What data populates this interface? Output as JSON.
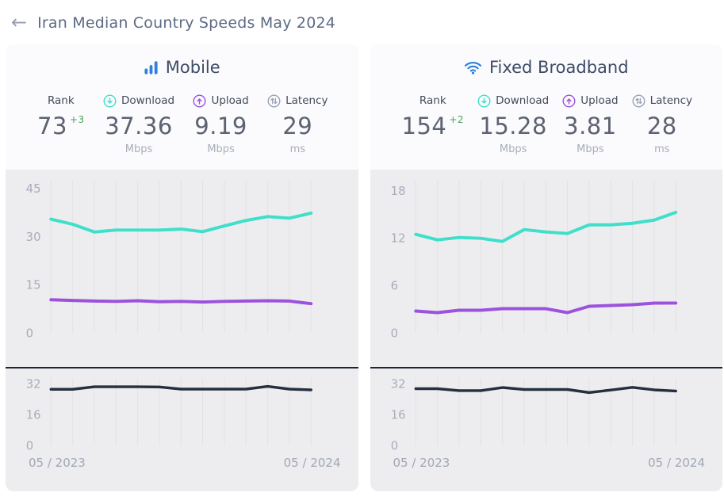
{
  "page": {
    "back_arrow": "←",
    "title": "Iran Median Country Speeds May 2024"
  },
  "colors": {
    "download": "#3fdfc9",
    "upload": "#9c52dc",
    "latency_line": "#252f3e",
    "grid": "#e2e2e6",
    "tick_label": "#a7adba",
    "accent_blue": "#2f80d9",
    "latency_icon_gray": "#9aa2b3",
    "positive_change": "#4da355"
  },
  "panels": [
    {
      "title": "Mobile",
      "icon": "mobile-signal-bars",
      "stats": {
        "rank": {
          "label": "Rank",
          "value": "73",
          "change": "+3"
        },
        "download": {
          "label": "Download",
          "value": "37.36",
          "unit": "Mbps"
        },
        "upload": {
          "label": "Upload",
          "value": "9.19",
          "unit": "Mbps"
        },
        "latency": {
          "label": "Latency",
          "value": "29",
          "unit": "ms"
        }
      },
      "x_axis": {
        "start": "05 / 2023",
        "end": "05 / 2024"
      }
    },
    {
      "title": "Fixed Broadband",
      "icon": "wifi",
      "stats": {
        "rank": {
          "label": "Rank",
          "value": "154",
          "change": "+2"
        },
        "download": {
          "label": "Download",
          "value": "15.28",
          "unit": "Mbps"
        },
        "upload": {
          "label": "Upload",
          "value": "3.81",
          "unit": "Mbps"
        },
        "latency": {
          "label": "Latency",
          "value": "28",
          "unit": "ms"
        }
      },
      "x_axis": {
        "start": "05 / 2023",
        "end": "05 / 2024"
      }
    }
  ],
  "chart_data": [
    {
      "id": "mobile-speeds",
      "type": "line",
      "title": "Mobile median download / upload speeds (Mbps)",
      "x": [
        "05/2023",
        "06/2023",
        "07/2023",
        "08/2023",
        "09/2023",
        "10/2023",
        "11/2023",
        "12/2023",
        "01/2024",
        "02/2024",
        "03/2024",
        "04/2024",
        "05/2024"
      ],
      "series": [
        {
          "name": "Download (Mbps)",
          "color": "#3fdfc9",
          "values": [
            35.5,
            33.9,
            31.5,
            32.1,
            32.1,
            32.1,
            32.4,
            31.6,
            33.4,
            35.1,
            36.3,
            35.8,
            37.36
          ]
        },
        {
          "name": "Upload (Mbps)",
          "color": "#9c52dc",
          "values": [
            10.4,
            10.2,
            10.0,
            9.9,
            10.1,
            9.8,
            9.9,
            9.7,
            9.9,
            10.0,
            10.1,
            10.0,
            9.19
          ]
        }
      ],
      "ylim": [
        0,
        48
      ],
      "yticks": [
        0,
        15,
        30,
        45
      ],
      "grid": "vertical",
      "legend": "none"
    },
    {
      "id": "mobile-latency",
      "type": "line",
      "title": "Mobile median latency (ms)",
      "x": [
        "05/2023",
        "06/2023",
        "07/2023",
        "08/2023",
        "09/2023",
        "10/2023",
        "11/2023",
        "12/2023",
        "01/2024",
        "02/2024",
        "03/2024",
        "04/2024",
        "05/2024"
      ],
      "series": [
        {
          "name": "Latency (ms)",
          "color": "#252f3e",
          "values": [
            29.3,
            29.3,
            30.6,
            30.6,
            30.6,
            30.5,
            29.4,
            29.4,
            29.4,
            29.4,
            30.8,
            29.4,
            29.0
          ]
        }
      ],
      "ylim": [
        0,
        36
      ],
      "yticks": [
        0,
        16,
        32
      ],
      "grid": "vertical",
      "legend": "none"
    },
    {
      "id": "fixed-speeds",
      "type": "line",
      "title": "Fixed broadband median download / upload speeds (Mbps)",
      "x": [
        "05/2023",
        "06/2023",
        "07/2023",
        "08/2023",
        "09/2023",
        "10/2023",
        "11/2023",
        "12/2023",
        "01/2024",
        "02/2024",
        "03/2024",
        "04/2024",
        "05/2024"
      ],
      "series": [
        {
          "name": "Download (Mbps)",
          "color": "#3fdfc9",
          "values": [
            12.5,
            11.8,
            12.1,
            12.0,
            11.6,
            13.1,
            12.8,
            12.6,
            13.7,
            13.7,
            13.9,
            14.3,
            15.28
          ]
        },
        {
          "name": "Upload (Mbps)",
          "color": "#9c52dc",
          "values": [
            2.8,
            2.6,
            2.9,
            2.9,
            3.1,
            3.1,
            3.1,
            2.6,
            3.4,
            3.5,
            3.6,
            3.8,
            3.81
          ]
        }
      ],
      "ylim": [
        0,
        19.5
      ],
      "yticks": [
        0,
        6,
        12,
        18
      ],
      "grid": "vertical",
      "legend": "none"
    },
    {
      "id": "fixed-latency",
      "type": "line",
      "title": "Fixed broadband median latency (ms)",
      "x": [
        "05/2023",
        "06/2023",
        "07/2023",
        "08/2023",
        "09/2023",
        "10/2023",
        "11/2023",
        "12/2023",
        "01/2024",
        "02/2024",
        "03/2024",
        "04/2024",
        "05/2024"
      ],
      "series": [
        {
          "name": "Latency (ms)",
          "color": "#252f3e",
          "values": [
            29.6,
            29.6,
            28.6,
            28.6,
            30.2,
            29.2,
            29.2,
            29.2,
            27.6,
            28.9,
            30.3,
            29.0,
            28.4
          ]
        }
      ],
      "ylim": [
        0,
        36
      ],
      "yticks": [
        0,
        16,
        32
      ],
      "grid": "vertical",
      "legend": "none"
    }
  ]
}
